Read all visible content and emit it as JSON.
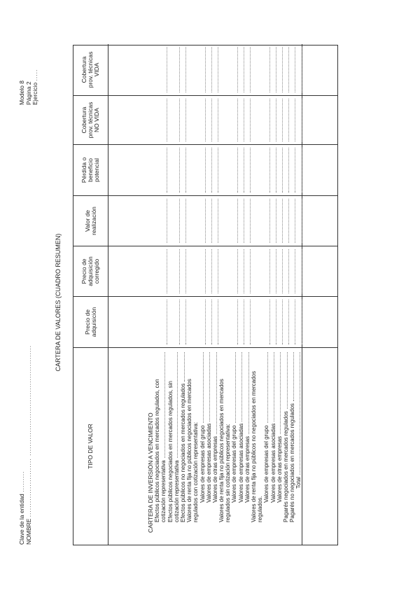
{
  "header_left": {
    "clave_label": "Clave de la entidad",
    "clave_dots": ".........",
    "nombre_label": "NOMBRE",
    "nombre_dots": ".........................   ..............................................."
  },
  "header_right": {
    "modelo": "Modelo 8",
    "pagina": "Página 2",
    "ejercicio": "Ejercicio",
    "ejercicio_dots": "....."
  },
  "title": "CARTERA DE VALORES  (CUADRO RESUMEN)",
  "columns": [
    "TIPO DE VALOR",
    "Precio de\nadquisición",
    "Precio de\nadquisición\ncorregido",
    "Valor de\nrealización",
    "Pérdida o\nbeneficio\npotencial",
    "Cobertura\nprov. técnicas\nNO VIDA",
    "Cobertura\nprov. técnicas\nVIDA"
  ],
  "rows": [
    {
      "text": "CARTERA DE INVERSIÓN A VENCIMIENTO",
      "indent": 0,
      "leader": false
    },
    {
      "text": "Efectos públicos negociados en mercados regulados, con",
      "indent": 1,
      "leader": false
    },
    {
      "text": "cotización representativa",
      "indent": 1,
      "leader": true
    },
    {
      "text": "Efectos públicos negociados en mercados regulados, sin",
      "indent": 1,
      "leader": false
    },
    {
      "text": "cotización representativa",
      "indent": 1,
      "leader": true
    },
    {
      "text": "Efectos públicos no negociados en mercados regulados",
      "indent": 1,
      "leader": true
    },
    {
      "text": "Valores de renta fija no públicos negociados en mercados",
      "indent": 1,
      "leader": false
    },
    {
      "text": "regulados con cotización representativa:",
      "indent": 1,
      "leader": false
    },
    {
      "text": "Valores de empresas del grupo",
      "indent": 2,
      "leader": true
    },
    {
      "text": "Valores de empresas asociadas",
      "indent": 2,
      "leader": true
    },
    {
      "text": "Valores de otras empresas",
      "indent": 2,
      "leader": true
    },
    {
      "text": "Valores de renta fija no públicos negociados en mercados",
      "indent": 1,
      "leader": false
    },
    {
      "text": "regulados sin cotización representativa:",
      "indent": 1,
      "leader": false
    },
    {
      "text": "Valores de empresas del grupo",
      "indent": 2,
      "leader": true
    },
    {
      "text": "Valores de empresas asociadas",
      "indent": 2,
      "leader": true
    },
    {
      "text": "Valores de otras empresas",
      "indent": 2,
      "leader": true
    },
    {
      "text": "Valores de renta fija no públicos no negociados en mercados",
      "indent": 1,
      "leader": false
    },
    {
      "text": "regulados.",
      "indent": 1,
      "leader": false
    },
    {
      "text": "Valores de empresas del grupo",
      "indent": 2,
      "leader": true
    },
    {
      "text": "Valores de empresas asociadas",
      "indent": 2,
      "leader": true
    },
    {
      "text": "Valores de otras empresas",
      "indent": 2,
      "leader": true
    },
    {
      "text": "Pagarés negociados en mercados regulados",
      "indent": 1,
      "leader": true
    },
    {
      "text": "Pagarés no negociados en mercados regulados",
      "indent": 1,
      "leader": true
    },
    {
      "text": "Total",
      "indent": 3,
      "leader": true
    }
  ]
}
